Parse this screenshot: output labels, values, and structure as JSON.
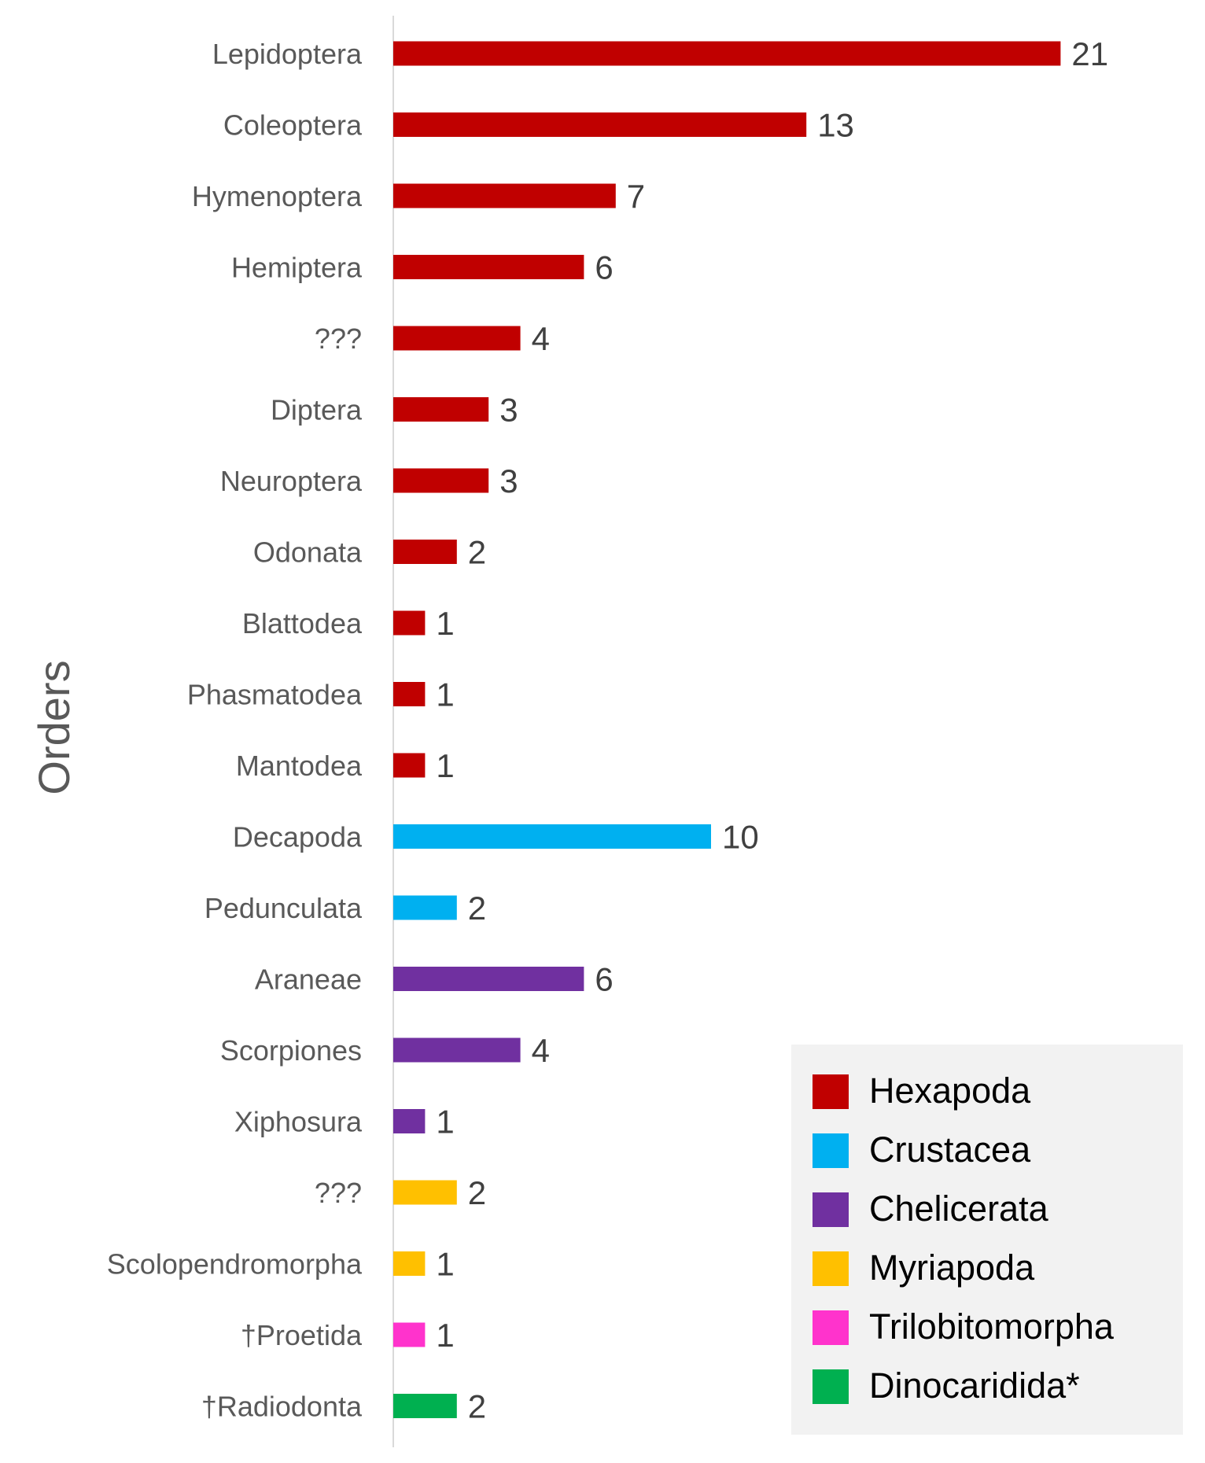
{
  "chart_data": {
    "type": "bar",
    "orientation": "horizontal",
    "ylabel": "Orders",
    "xlabel": "",
    "xlim": [
      0,
      21
    ],
    "grid": false,
    "legend_position": "bottom-right",
    "categories": [
      "Lepidoptera",
      "Coleoptera",
      "Hymenoptera",
      "Hemiptera",
      "???",
      "Diptera",
      "Neuroptera",
      "Odonata",
      "Blattodea",
      "Phasmatodea",
      "Mantodea",
      "Decapoda",
      "Pedunculata",
      "Araneae",
      "Scorpiones",
      "Xiphosura",
      "???",
      "Scolopendromorpha",
      "†Proetida",
      "†Radiodonta"
    ],
    "values": [
      21,
      13,
      7,
      6,
      4,
      3,
      3,
      2,
      1,
      1,
      1,
      10,
      2,
      6,
      4,
      1,
      2,
      1,
      1,
      2
    ],
    "groups": [
      "Hexapoda",
      "Hexapoda",
      "Hexapoda",
      "Hexapoda",
      "Hexapoda",
      "Hexapoda",
      "Hexapoda",
      "Hexapoda",
      "Hexapoda",
      "Hexapoda",
      "Hexapoda",
      "Crustacea",
      "Crustacea",
      "Chelicerata",
      "Chelicerata",
      "Chelicerata",
      "Myriapoda",
      "Myriapoda",
      "Trilobitomorpha",
      "Dinocaridida*"
    ],
    "legend": [
      {
        "name": "Hexapoda",
        "color": "#c00000"
      },
      {
        "name": "Crustacea",
        "color": "#00b0f0"
      },
      {
        "name": "Chelicerata",
        "color": "#7030a0"
      },
      {
        "name": "Myriapoda",
        "color": "#ffc000"
      },
      {
        "name": "Trilobitomorpha",
        "color": "#ff33cc"
      },
      {
        "name": "Dinocaridida*",
        "color": "#00b050"
      }
    ]
  }
}
